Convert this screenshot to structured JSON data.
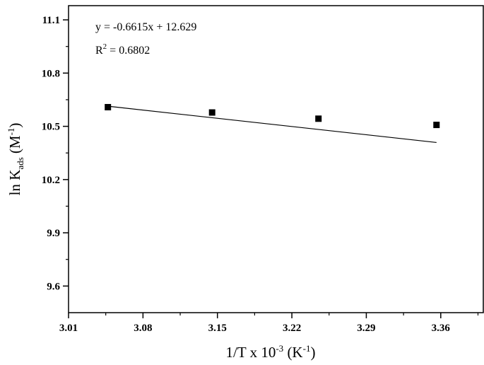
{
  "chart_data": {
    "type": "scatter",
    "title": "",
    "xlabel": {
      "base": "1/T x 10",
      "exp": "-3",
      "unit_open": " (K",
      "unit_exp": "-1",
      "unit_close": ")"
    },
    "ylabel": {
      "base": "ln K",
      "sub": "ads",
      "unit_open": " (M",
      "unit_exp": "-1",
      "unit_close": ")"
    },
    "xlim": [
      3.01,
      3.4
    ],
    "ylim": [
      9.45,
      11.18
    ],
    "xticks": [
      3.01,
      3.08,
      3.15,
      3.22,
      3.29,
      3.36
    ],
    "xtick_labels": [
      "3.01",
      "3.08",
      "3.15",
      "3.22",
      "3.29",
      "3.36"
    ],
    "yticks": [
      9.6,
      9.9,
      10.2,
      10.5,
      10.8,
      11.1
    ],
    "ytick_labels": [
      "9.6",
      "9.9",
      "10.2",
      "10.5",
      "10.8",
      "11.1"
    ],
    "grid": false,
    "series": [
      {
        "x": [
          3.047,
          3.145,
          3.245,
          3.356
        ],
        "y": [
          10.608,
          10.578,
          10.543,
          10.508
        ],
        "marker": "square",
        "color": "#000000"
      }
    ],
    "fit": {
      "slope": -0.6615,
      "intercept": 12.629,
      "x_range": [
        3.047,
        3.356
      ],
      "color": "#000000"
    },
    "annotations": {
      "equation": "y = -0.6615x + 12.629",
      "r2_label": "R",
      "r2_exp": "2",
      "r2_value": " = 0.6802"
    }
  }
}
